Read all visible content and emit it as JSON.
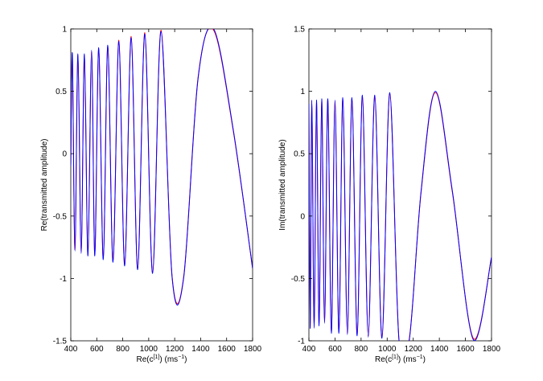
{
  "chart_data": [
    {
      "type": "line",
      "xlabel_main": "Re(c",
      "xlabel_sup": "[1]",
      "xlabel_tail": ") (ms",
      "xlabel_unit_sup": "−1",
      "xlabel_close": ")",
      "ylabel": "Re(transmitted amplitude)",
      "xlim": [
        400,
        1800
      ],
      "ylim": [
        -1.5,
        1
      ],
      "xticks": [
        "400",
        "600",
        "800",
        "1000",
        "1200",
        "1400",
        "1600",
        "1800"
      ],
      "xtick_values": [
        400,
        600,
        800,
        1000,
        1200,
        1400,
        1600,
        1800
      ],
      "yticks": [
        "1",
        "0.5",
        "0",
        "-0.5",
        "-1",
        "-1.5"
      ],
      "ytick_values": [
        1,
        0.5,
        0,
        -0.5,
        -1,
        -1.5
      ],
      "series": [
        {
          "color": "#0000ff",
          "x": [
            400,
            412,
            432,
            455,
            480,
            505,
            532,
            560,
            585,
            615,
            650,
            685,
            725,
            770,
            815,
            865,
            915,
            970,
            1030,
            1095,
            1180,
            1270,
            1380,
            1500,
            1650,
            1800
          ],
          "y": [
            -0.1,
            0.8,
            -0.78,
            0.8,
            -0.8,
            0.8,
            -0.82,
            0.83,
            -0.82,
            0.85,
            -0.85,
            0.87,
            -0.87,
            0.9,
            -0.9,
            0.93,
            -0.93,
            0.96,
            -0.96,
            0.98,
            -0.99,
            -0.99,
            0.6,
            1.0,
            0.2,
            -0.92
          ]
        },
        {
          "color": "#ff0000",
          "x": [
            400,
            412,
            432,
            455,
            480,
            505,
            532,
            560,
            585,
            615,
            650,
            685,
            725,
            770,
            815,
            865,
            915,
            970,
            1030,
            1095,
            1180,
            1270,
            1380,
            1500,
            1650,
            1800
          ],
          "y": [
            -0.1,
            0.78,
            -0.77,
            0.79,
            -0.79,
            0.79,
            -0.81,
            0.82,
            -0.81,
            0.84,
            -0.84,
            0.86,
            -0.86,
            0.91,
            -0.89,
            0.94,
            -0.92,
            0.97,
            -0.95,
            0.99,
            -0.98,
            -0.98,
            0.61,
            0.99,
            0.19,
            -0.92
          ]
        }
      ]
    },
    {
      "type": "line",
      "xlabel_main": "Re(c",
      "xlabel_sup": "[1]",
      "xlabel_tail": ") (ms",
      "xlabel_unit_sup": "−1",
      "xlabel_close": ")",
      "ylabel": "Im(transmitted amplitude)",
      "xlim": [
        400,
        1800
      ],
      "ylim": [
        -1,
        1.5
      ],
      "xticks": [
        "400",
        "600",
        "800",
        "1000",
        "1200",
        "1400",
        "1600",
        "1800"
      ],
      "xtick_values": [
        400,
        600,
        800,
        1000,
        1200,
        1400,
        1600,
        1800
      ],
      "yticks": [
        "1.5",
        "1",
        "0.5",
        "0",
        "-0.5",
        "-1"
      ],
      "ytick_values": [
        1.5,
        1,
        0.5,
        0,
        -0.5,
        -1
      ],
      "series": [
        {
          "color": "#0000ff",
          "x": [
            400,
            410,
            422,
            440,
            458,
            478,
            498,
            520,
            545,
            572,
            600,
            630,
            660,
            695,
            730,
            770,
            810,
            855,
            905,
            960,
            1020,
            1090,
            1170,
            1260,
            1370,
            1500,
            1660,
            1800
          ],
          "y": [
            0.9,
            -0.9,
            0.93,
            -0.9,
            0.93,
            -0.88,
            0.94,
            -0.86,
            0.94,
            -0.94,
            0.93,
            -0.94,
            0.95,
            -0.95,
            0.95,
            -0.96,
            0.97,
            -0.97,
            0.97,
            -0.98,
            0.99,
            -0.99,
            -0.99,
            0.2,
            1.0,
            0.2,
            -0.99,
            -0.33
          ]
        },
        {
          "color": "#ff0000",
          "x": [
            400,
            410,
            422,
            440,
            458,
            478,
            498,
            520,
            545,
            572,
            600,
            630,
            660,
            695,
            730,
            770,
            810,
            855,
            905,
            960,
            1020,
            1090,
            1170,
            1260,
            1370,
            1500,
            1660,
            1800
          ],
          "y": [
            0.89,
            -0.89,
            0.92,
            -0.89,
            0.92,
            -0.87,
            0.93,
            -0.85,
            0.93,
            -0.93,
            0.92,
            -0.93,
            0.94,
            -0.94,
            0.94,
            -0.95,
            0.96,
            -0.96,
            0.96,
            -0.97,
            0.98,
            -0.98,
            -0.98,
            0.19,
            0.99,
            0.19,
            -0.98,
            -0.33
          ]
        }
      ]
    }
  ]
}
